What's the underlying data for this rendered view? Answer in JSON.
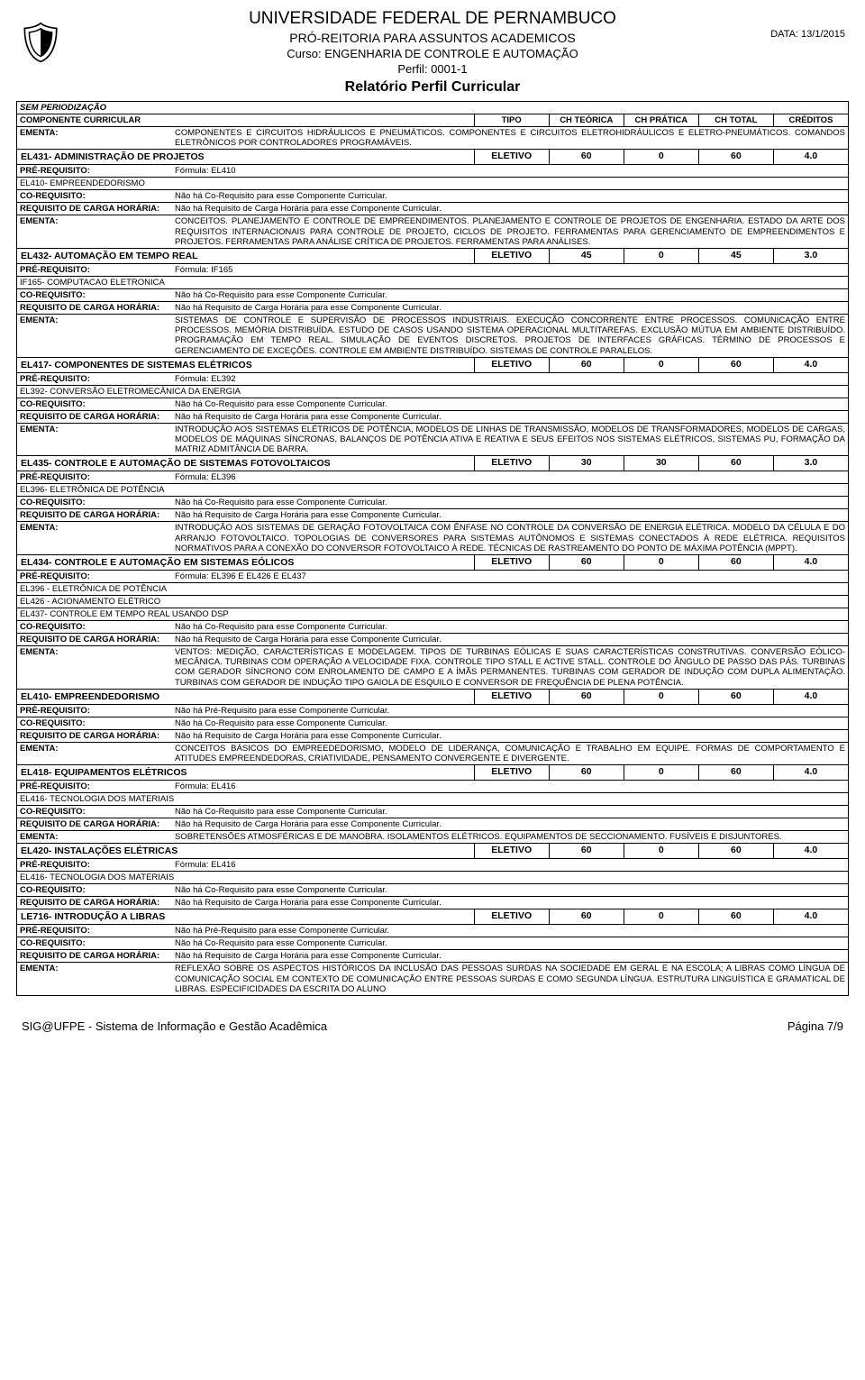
{
  "header": {
    "university": "UNIVERSIDADE FEDERAL DE PERNAMBUCO",
    "dept": "PRÓ-REITORIA PARA ASSUNTOS ACADEMICOS",
    "course": "Curso: ENGENHARIA DE CONTROLE E AUTOMAÇÃO",
    "profile": "Perfil: 0001-1",
    "title": "Relatório Perfil Curricular",
    "date_label": "DATA: 13/1/2015",
    "logo_glyph": "🛡"
  },
  "labels": {
    "section": "SEM PERIODIZAÇÃO",
    "col_componente": "COMPONENTE CURRICULAR",
    "col_tipo": "TIPO",
    "col_teorica": "CH TEÓRICA",
    "col_pratica": "CH PRÁTICA",
    "col_total": "CH TOTAL",
    "col_creditos": "CRÉDITOS",
    "ementa": "EMENTA:",
    "prereq": "PRÉ-REQUISITO:",
    "coreq": "CO-REQUISITO:",
    "reqcarga": "REQUISITO DE CARGA HORÁRIA:",
    "no_coreq": "Não há Co-Requisito para esse Componente Curricular.",
    "no_reqcarga": "Não há Requisito de Carga Horária para esse Componente Curricular.",
    "no_prereq": "Não há Pré-Requisito para esse Componente Curricular."
  },
  "intro_ementa": "COMPONENTES E CIRCUITOS HIDRÁULICOS E PNEUMÁTICOS. COMPONENTES E CIRCUITOS ELETROHIDRÁULICOS E ELETRO-PNEUMÁTICOS. COMANDOS ELETRÔNICOS POR CONTROLADORES PROGRAMÁVEIS.",
  "components": [
    {
      "name": "EL431- ADMINISTRAÇÃO DE PROJETOS",
      "tipo": "ELETIVO",
      "teo": "60",
      "pra": "0",
      "tot": "60",
      "cred": "4.0",
      "prereq": "Fórmula: EL410",
      "sub1": "EL410- EMPREENDEDORISMO",
      "ementa": "CONCEITOS. PLANEJAMENTO E CONTROLE DE EMPREENDIMENTOS. PLANEJAMENTO E CONTROLE DE PROJETOS DE ENGENHARIA. ESTADO DA ARTE DOS REQUISITOS INTERNACIONAIS PARA CONTROLE DE PROJETO, CICLOS DE PROJETO. FERRAMENTAS PARA GERENCIAMENTO DE EMPREENDIMENTOS E PROJETOS. FERRAMENTAS PARA ANÁLISE CRÍTICA DE PROJETOS. FERRAMENTAS PARA ANÁLISES."
    },
    {
      "name": "EL432- AUTOMAÇÃO EM TEMPO REAL",
      "tipo": "ELETIVO",
      "teo": "45",
      "pra": "0",
      "tot": "45",
      "cred": "3.0",
      "prereq": "Fórmula: IF165",
      "sub1": "IF165- COMPUTACAO ELETRONICA",
      "ementa": "SISTEMAS DE CONTROLE E SUPERVISÃO DE PROCESSOS INDUSTRIAIS. EXECUÇÃO CONCORRENTE ENTRE PROCESSOS. COMUNICAÇÃO ENTRE PROCESSOS. MEMÓRIA DISTRIBUÍDA. ESTUDO DE CASOS USANDO SISTEMA OPERACIONAL MULTITAREFAS. EXCLUSÃO MÚTUA EM AMBIENTE DISTRIBUÍDO. PROGRAMAÇÃO EM TEMPO REAL. SIMULAÇÃO DE EVENTOS DISCRETOS. PROJETOS DE INTERFACES GRÁFICAS. TÉRMINO DE PROCESSOS E GERENCIAMENTO DE EXCEÇÕES. CONTROLE EM AMBIENTE DISTRIBUÍDO. SISTEMAS DE CONTROLE PARALELOS."
    },
    {
      "name": "EL417- COMPONENTES DE SISTEMAS ELÉTRICOS",
      "tipo": "ELETIVO",
      "teo": "60",
      "pra": "0",
      "tot": "60",
      "cred": "4.0",
      "prereq": "Fórmula: EL392",
      "sub1": "EL392- CONVERSÃO ELETROMECÂNICA DA ENERGIA",
      "ementa": "INTRODUÇÃO AOS SISTEMAS ELÉTRICOS DE POTÊNCIA, MODELOS DE LINHAS DE TRANSMISSÃO, MODELOS DE TRANSFORMADORES, MODELOS DE CARGAS, MODELOS DE MÁQUINAS SÍNCRONAS, BALANÇOS DE POTÊNCIA ATIVA E REATIVA E SEUS EFEITOS NOS SISTEMAS ELÉTRICOS, SISTEMAS PU, FORMAÇÃO DA MATRIZ ADMITÂNCIA DE BARRA."
    },
    {
      "name": "EL435- CONTROLE E AUTOMAÇÃO DE SISTEMAS FOTOVOLTAICOS",
      "tipo": "ELETIVO",
      "teo": "30",
      "pra": "30",
      "tot": "60",
      "cred": "3.0",
      "prereq": "Fórmula: EL396",
      "sub1": "EL396- ELETRÔNICA DE POTÊNCIA",
      "ementa": "INTRODUÇÃO AOS SISTEMAS DE GERAÇÃO FOTOVOLTAICA COM ÊNFASE NO CONTROLE DA CONVERSÃO DE ENERGIA ELÉTRICA. MODELO DA CÉLULA E DO ARRANJO FOTOVOLTAICO. TOPOLOGIAS DE CONVERSORES PARA SISTEMAS AUTÔNOMOS E SISTEMAS CONECTADOS À REDE ELÉTRICA. REQUISITOS NORMATIVOS PARA A CONEXÃO DO CONVERSOR FOTOVOLTAICO À REDE. TÉCNICAS DE RASTREAMENTO DO PONTO DE MÁXIMA POTÊNCIA (MPPT)."
    },
    {
      "name": "EL434- CONTROLE E AUTOMAÇÃO EM SISTEMAS EÓLICOS",
      "tipo": "ELETIVO",
      "teo": "60",
      "pra": "0",
      "tot": "60",
      "cred": "4.0",
      "prereq": "Fórmula: EL396 E EL426 E EL437",
      "sub1": "EL396 - ELETRÔNICA DE POTÊNCIA",
      "sub2": "EL426 - ACIONAMENTO ELÉTRICO",
      "sub3": "EL437- CONTROLE EM TEMPO REAL USANDO DSP",
      "ementa": "VENTOS: MEDIÇÃO, CARACTERÍSTICAS E MODELAGEM. TIPOS DE TURBINAS EÓLICAS E SUAS CARACTERÍSTICAS CONSTRUTIVAS. CONVERSÃO EÓLICO-MECÂNICA. TURBINAS COM OPERAÇÃO A VELOCIDADE FIXA. CONTROLE TIPO STALL E ACTIVE STALL. CONTROLE DO ÂNGULO DE PASSO DAS PÁS. TURBINAS COM GERADOR SÍNCRONO COM ENROLAMENTO DE CAMPO E A ÍMÃS PERMANENTES. TURBINAS COM GERADOR DE INDUÇÃO COM DUPLA ALIMENTAÇÃO. TURBINAS COM GERADOR DE INDUÇÃO TIPO GAIOLA DE ESQUILO E CONVERSOR DE FREQUÊNCIA DE PLENA POTÊNCIA."
    },
    {
      "name": "EL410- EMPREENDEDORISMO",
      "tipo": "ELETIVO",
      "teo": "60",
      "pra": "0",
      "tot": "60",
      "cred": "4.0",
      "no_prereq": true,
      "ementa": "CONCEITOS BÁSICOS DO EMPREEDEDORISMO, MODELO DE LIDERANÇA, COMUNICAÇÃO E TRABALHO EM EQUIPE. FORMAS DE COMPORTAMENTO E ATITUDES EMPREENDEDORAS, CRIATIVIDADE, PENSAMENTO CONVERGENTE E DIVERGENTE."
    },
    {
      "name": "EL418- EQUIPAMENTOS ELÉTRICOS",
      "tipo": "ELETIVO",
      "teo": "60",
      "pra": "0",
      "tot": "60",
      "cred": "4.0",
      "prereq": "Fórmula: EL416",
      "sub1": "EL416- TECNOLOGIA DOS MATERIAIS",
      "ementa": "SOBRETENSÕES ATMOSFÉRICAS E DE MANOBRA. ISOLAMENTOS ELÉTRICOS. EQUIPAMENTOS DE SECCIONAMENTO. FUSÍVEIS E DISJUNTORES."
    },
    {
      "name": "EL420- INSTALAÇÕES ELÉTRICAS",
      "tipo": "ELETIVO",
      "teo": "60",
      "pra": "0",
      "tot": "60",
      "cred": "4.0",
      "prereq": "Fórmula: EL416",
      "sub1": "EL416- TECNOLOGIA DOS MATERIAIS",
      "ementa": ""
    },
    {
      "name": "LE716- INTRODUÇÃO A LIBRAS",
      "tipo": "ELETIVO",
      "teo": "60",
      "pra": "0",
      "tot": "60",
      "cred": "4.0",
      "no_prereq": true,
      "ementa": "REFLEXÃO SOBRE OS ASPECTOS HISTÓRICOS DA INCLUSÃO DAS PESSOAS SURDAS NA SOCIEDADE EM GERAL E NA ESCOLA; A LIBRAS COMO LÍNGUA DE COMUNICAÇÃO SOCIAL EM CONTEXTO DE COMUNICAÇÃO ENTRE PESSOAS SURDAS E COMO SEGUNDA LÍNGUA. ESTRUTURA LINGUÍSTICA E GRAMATICAL DE LIBRAS. ESPECIFICIDADES DA ESCRITA DO ALUNO"
    }
  ],
  "footer": {
    "left": "SIG@UFPE - Sistema de Informação e Gestão Acadêmica",
    "right": "Página 7/9"
  }
}
